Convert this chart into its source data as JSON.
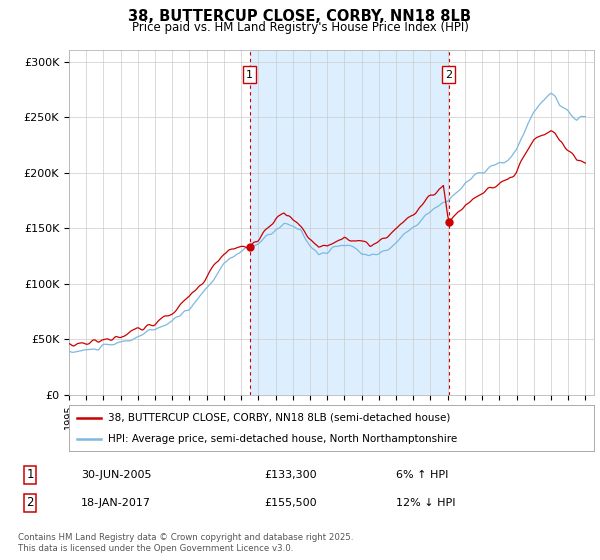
{
  "title": "38, BUTTERCUP CLOSE, CORBY, NN18 8LB",
  "subtitle": "Price paid vs. HM Land Registry's House Price Index (HPI)",
  "legend_line1": "38, BUTTERCUP CLOSE, CORBY, NN18 8LB (semi-detached house)",
  "legend_line2": "HPI: Average price, semi-detached house, North Northamptonshire",
  "footnote": "Contains HM Land Registry data © Crown copyright and database right 2025.\nThis data is licensed under the Open Government Licence v3.0.",
  "annotation1_date": "30-JUN-2005",
  "annotation1_price": "£133,300",
  "annotation1_hpi": "6% ↑ HPI",
  "annotation2_date": "18-JAN-2017",
  "annotation2_price": "£155,500",
  "annotation2_hpi": "12% ↓ HPI",
  "hpi_color": "#7db8e0",
  "price_color": "#cc0000",
  "annotation_color": "#cc0000",
  "highlight_color": "#ddeeff",
  "background_color": "#e8eef8",
  "ylim": [
    0,
    310000
  ],
  "yticks": [
    0,
    50000,
    100000,
    150000,
    200000,
    250000,
    300000
  ],
  "ytick_labels": [
    "£0",
    "£50K",
    "£100K",
    "£150K",
    "£200K",
    "£250K",
    "£300K"
  ],
  "marker1_x": 2005.5,
  "marker1_y": 133300,
  "marker2_x": 2017.05,
  "marker2_y": 155500,
  "xmin": 1995,
  "xmax": 2025.5
}
